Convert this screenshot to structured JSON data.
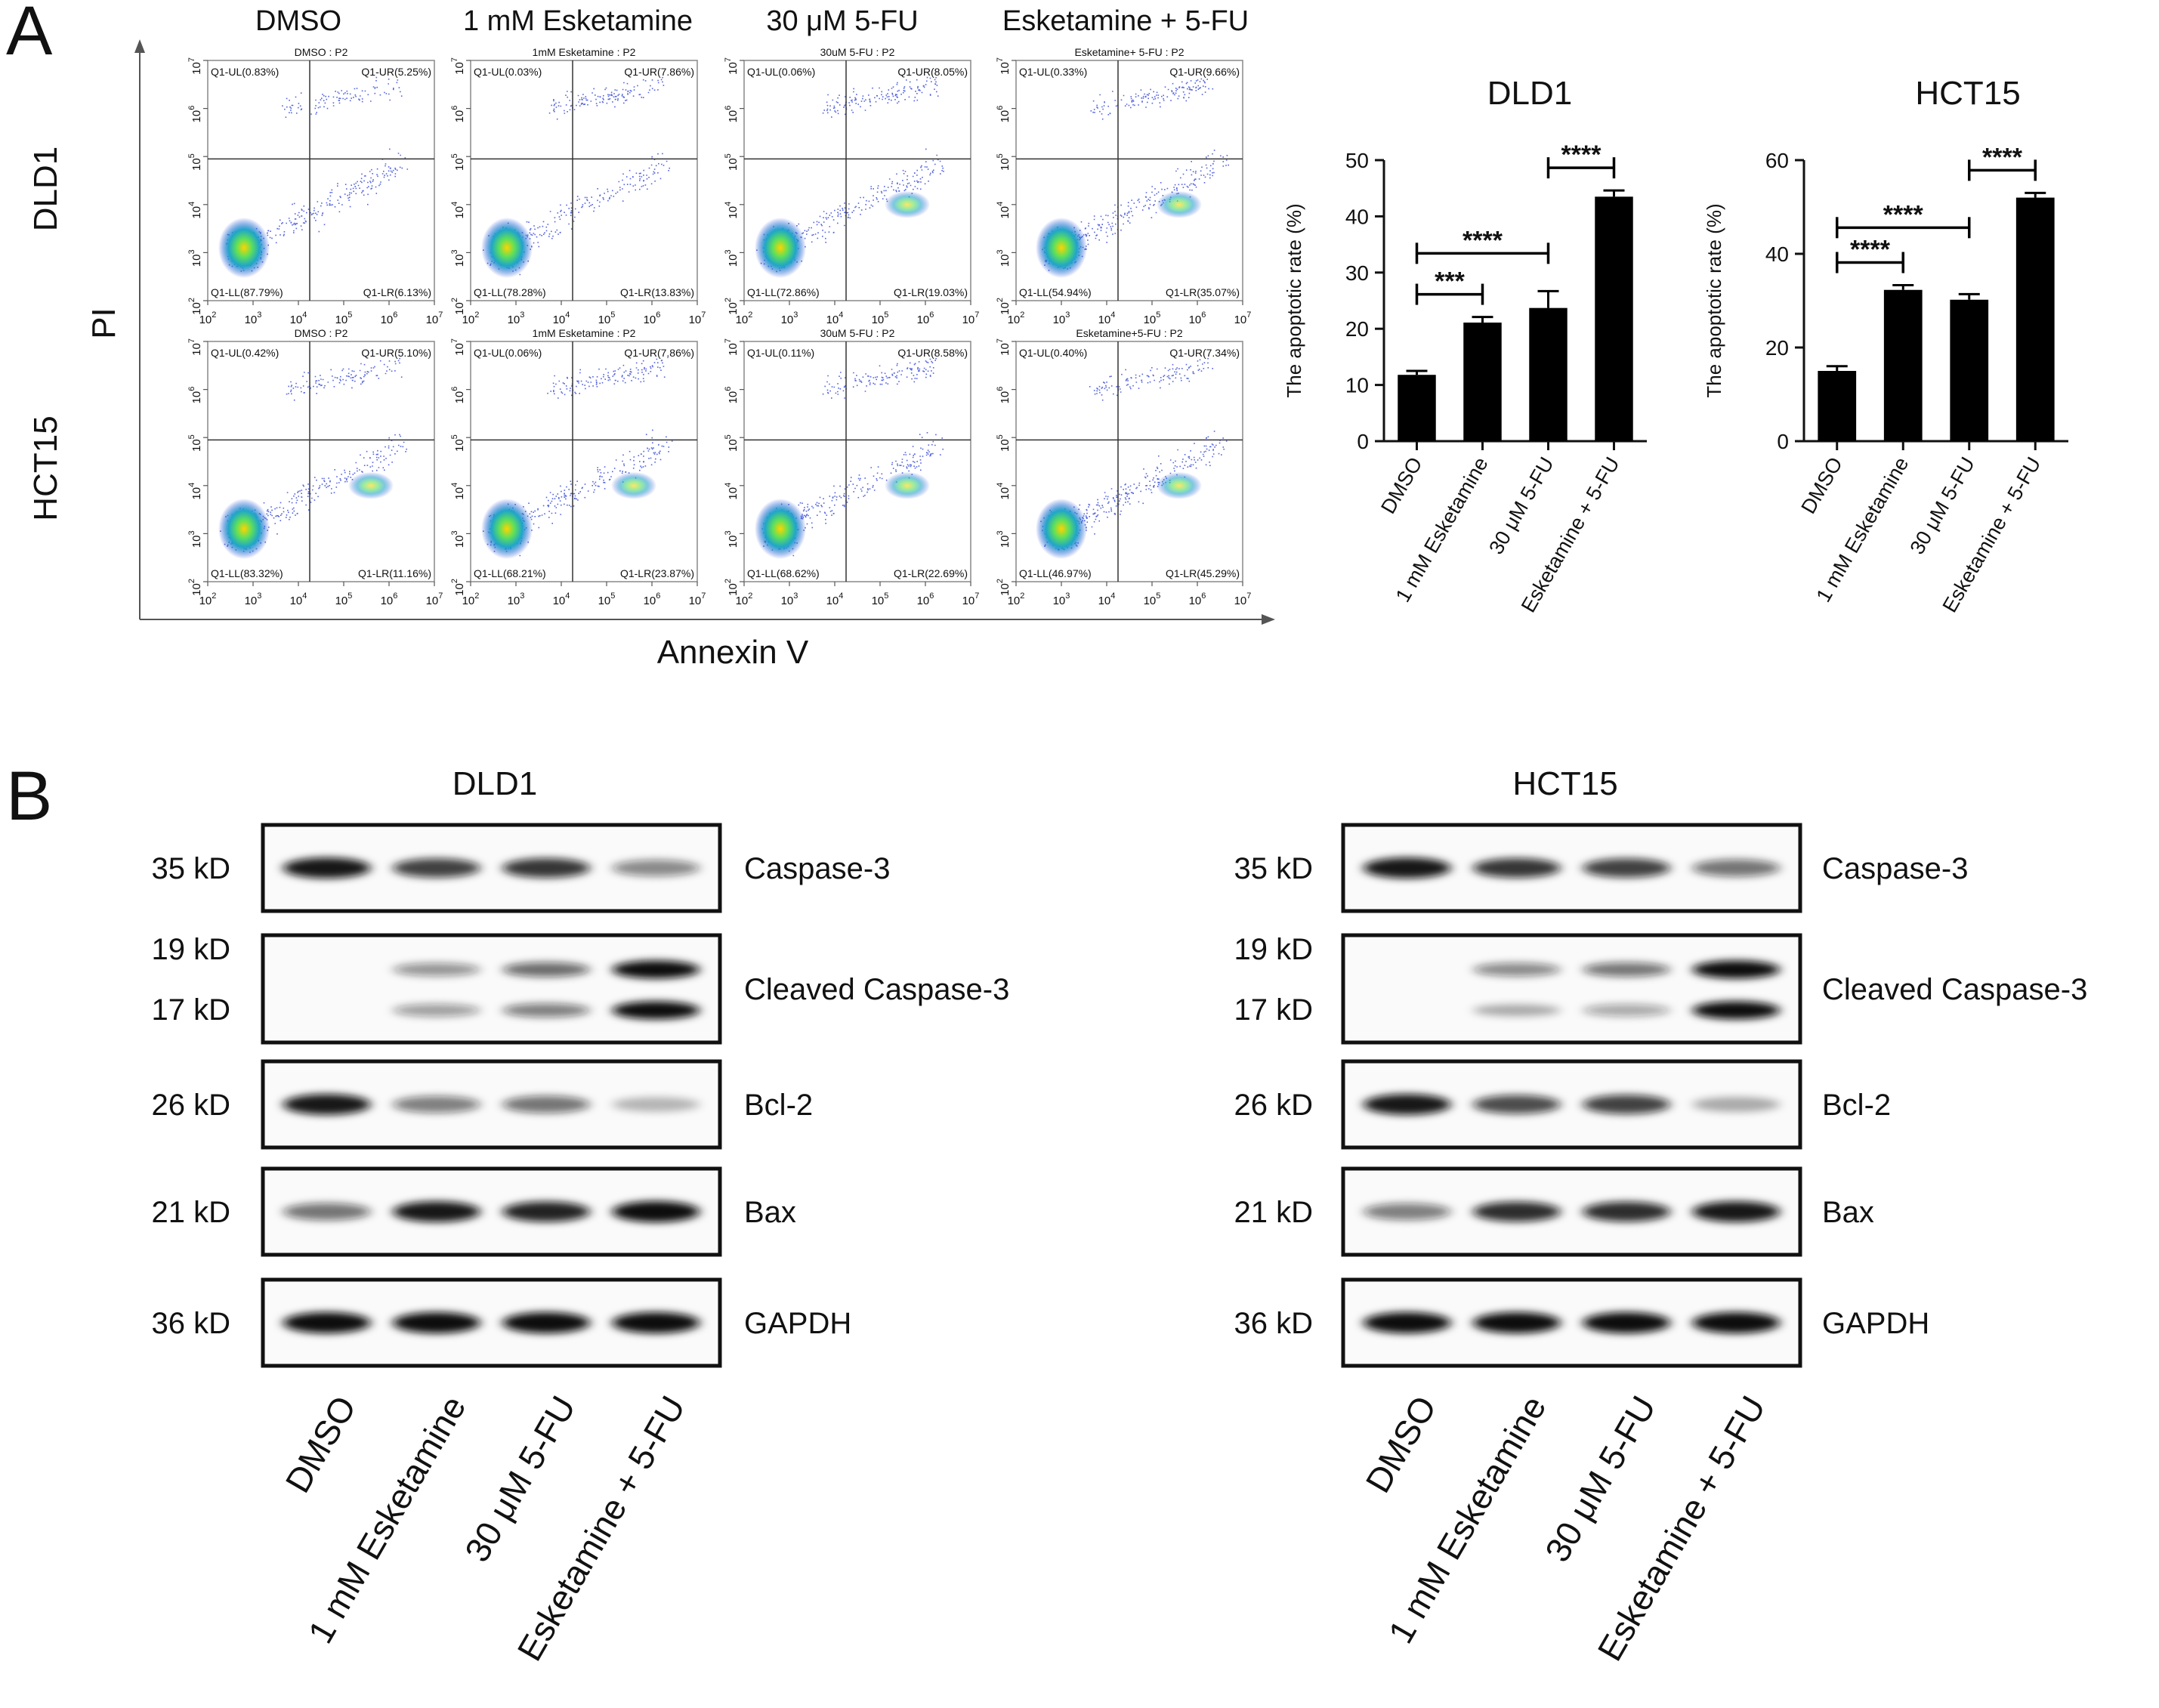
{
  "panel_labels": {
    "a": "A",
    "b": "B"
  },
  "flow": {
    "x_axis_label": "Annexin V",
    "y_axis_label": "PI",
    "column_titles": [
      "DMSO",
      "1 mM Esketamine",
      "30 μM 5-FU",
      "Esketamine + 5-FU"
    ],
    "row_titles": [
      "DLD1",
      "HCT15"
    ],
    "tick_base": "10",
    "tick_exponents": [
      "2",
      "3",
      "4",
      "5",
      "6",
      "7"
    ],
    "plots": [
      [
        {
          "title": "DMSO : P2",
          "ul": "Q1-UL(0.83%)",
          "ur": "Q1-UR(5.25%)",
          "ll": "Q1-LL(87.79%)",
          "lr": "Q1-LR(6.13%)"
        },
        {
          "title": "1mM Esketamine : P2",
          "ul": "Q1-UL(0.03%)",
          "ur": "Q1-UR(7.86%)",
          "ll": "Q1-LL(78.28%)",
          "lr": "Q1-LR(13.83%)"
        },
        {
          "title": "30uM 5-FU : P2",
          "ul": "Q1-UL(0.06%)",
          "ur": "Q1-UR(8.05%)",
          "ll": "Q1-LL(72.86%)",
          "lr": "Q1-LR(19.03%)"
        },
        {
          "title": "Esketamine+ 5-FU : P2",
          "ul": "Q1-UL(0.33%)",
          "ur": "Q1-UR(9.66%)",
          "ll": "Q1-LL(54.94%)",
          "lr": "Q1-LR(35.07%)"
        }
      ],
      [
        {
          "title": "DMSO : P2",
          "ul": "Q1-UL(0.42%)",
          "ur": "Q1-UR(5.10%)",
          "ll": "Q1-LL(83.32%)",
          "lr": "Q1-LR(11.16%)"
        },
        {
          "title": "1mM Esketamine : P2",
          "ul": "Q1-UL(0.06%)",
          "ur": "Q1-UR(7.86%)",
          "ll": "Q1-LL(68.21%)",
          "lr": "Q1-LR(23.87%)"
        },
        {
          "title": "30uM 5-FU : P2",
          "ul": "Q1-UL(0.11%)",
          "ur": "Q1-UR(8.58%)",
          "ll": "Q1-LL(68.62%)",
          "lr": "Q1-LR(22.69%)"
        },
        {
          "title": "Esketamine+5-FU : P2",
          "ul": "Q1-UL(0.40%)",
          "ur": "Q1-UR(7.34%)",
          "ll": "Q1-LL(46.97%)",
          "lr": "Q1-LR(45.29%)"
        }
      ]
    ]
  },
  "chart_data": [
    {
      "type": "bar",
      "title": "DLD1",
      "ylabel": "The apoptotic rate (%)",
      "xlabel": "",
      "categories": [
        "DMSO",
        "1 mM Esketamine",
        "30 μM 5-FU",
        "Esketamine + 5-FU"
      ],
      "values": [
        11.8,
        21.1,
        23.7,
        43.5
      ],
      "errors": [
        0.7,
        1.0,
        3.0,
        1.1
      ],
      "ylim": [
        0,
        50
      ],
      "yticks": [
        "0",
        "10",
        "20",
        "30",
        "40",
        "50"
      ],
      "significance": [
        {
          "from": 0,
          "to": 1,
          "label": "***"
        },
        {
          "from": 0,
          "to": 2,
          "label": "****"
        },
        {
          "from": 2,
          "to": 3,
          "label": "****"
        }
      ]
    },
    {
      "type": "bar",
      "title": "HCT15",
      "ylabel": "The apoptotic rate (%)",
      "xlabel": "",
      "categories": [
        "DMSO",
        "1 mM Esketamine",
        "30 μM 5-FU",
        "Esketamine + 5-FU"
      ],
      "values": [
        15.0,
        32.3,
        30.2,
        52.0
      ],
      "errors": [
        1.0,
        1.0,
        1.2,
        1.0
      ],
      "ylim": [
        0,
        60
      ],
      "yticks": [
        "0",
        "20",
        "40",
        "60"
      ],
      "significance": [
        {
          "from": 0,
          "to": 1,
          "label": "****"
        },
        {
          "from": 0,
          "to": 2,
          "label": "****"
        },
        {
          "from": 2,
          "to": 3,
          "label": "****"
        }
      ]
    }
  ],
  "western": {
    "lane_labels": [
      "DMSO",
      "1 mM Esketamine",
      "30 μM 5-FU",
      "Esketamine + 5-FU"
    ],
    "blots": [
      {
        "cell_line": "DLD1",
        "rows": [
          {
            "protein": "Caspase-3",
            "sizes": [
              "35 kD"
            ],
            "bands": [
              [
                0.95,
                0.75,
                0.8,
                0.4
              ]
            ]
          },
          {
            "protein": "Cleaved Caspase-3",
            "sizes": [
              "19 kD",
              "17 kD"
            ],
            "bands": [
              [
                0.0,
                0.35,
                0.55,
                1.0
              ],
              [
                0.0,
                0.3,
                0.45,
                1.0
              ]
            ]
          },
          {
            "protein": "Bcl-2",
            "sizes": [
              "26 kD"
            ],
            "bands": [
              [
                0.95,
                0.45,
                0.5,
                0.15
              ]
            ]
          },
          {
            "protein": "Bax",
            "sizes": [
              "21 kD"
            ],
            "bands": [
              [
                0.5,
                0.95,
                0.9,
                1.0
              ]
            ]
          },
          {
            "protein": "GAPDH",
            "sizes": [
              "36 kD"
            ],
            "bands": [
              [
                1.0,
                1.0,
                1.0,
                1.0
              ]
            ]
          }
        ]
      },
      {
        "cell_line": "HCT15",
        "rows": [
          {
            "protein": "Caspase-3",
            "sizes": [
              "35 kD"
            ],
            "bands": [
              [
                0.95,
                0.8,
                0.75,
                0.5
              ]
            ]
          },
          {
            "protein": "Cleaved Caspase-3",
            "sizes": [
              "19 kD",
              "17 kD"
            ],
            "bands": [
              [
                0.0,
                0.4,
                0.5,
                1.0
              ],
              [
                0.0,
                0.2,
                0.25,
                1.0
              ]
            ]
          },
          {
            "protein": "Bcl-2",
            "sizes": [
              "26 kD"
            ],
            "bands": [
              [
                0.95,
                0.7,
                0.75,
                0.2
              ]
            ]
          },
          {
            "protein": "Bax",
            "sizes": [
              "21 kD"
            ],
            "bands": [
              [
                0.45,
                0.85,
                0.85,
                0.95
              ]
            ]
          },
          {
            "protein": "GAPDH",
            "sizes": [
              "36 kD"
            ],
            "bands": [
              [
                1.0,
                1.0,
                1.0,
                1.0
              ]
            ]
          }
        ]
      }
    ]
  }
}
